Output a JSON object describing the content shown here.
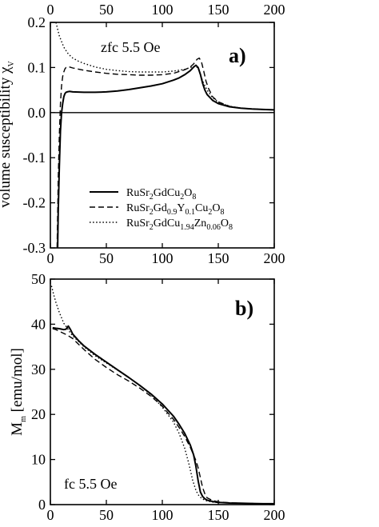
{
  "chart_data": [
    {
      "type": "line",
      "panel": "a)",
      "annotation": "zfc 5.5 Oe",
      "xlabel": "",
      "ylabel": "volume susceptibility χ",
      "ylabel_subscript": "V",
      "xlim": [
        0,
        200
      ],
      "ylim": [
        -0.3,
        0.2
      ],
      "x_ticks": [
        "0",
        "50",
        "100",
        "150",
        "200"
      ],
      "y_ticks": [
        "0.2",
        "0.1",
        "0.0",
        "-0.1",
        "-0.2",
        "-0.3"
      ],
      "zero_line": true,
      "legend_placement": "lower-right",
      "series": [
        {
          "name": "RuSr2GdCu2O8",
          "name_parts": [
            [
              "RuSr",
              false
            ],
            [
              "2",
              true
            ],
            [
              "GdCu",
              false
            ],
            [
              "2",
              true
            ],
            [
              "O",
              false
            ],
            [
              "8",
              true
            ]
          ],
          "dash": "solid",
          "x": [
            6.5,
            7,
            8,
            9,
            10,
            11,
            12,
            13,
            14,
            15,
            17,
            20,
            30,
            40,
            50,
            60,
            70,
            80,
            90,
            100,
            105,
            110,
            115,
            120,
            125,
            128,
            130,
            132,
            134,
            136,
            138,
            140,
            145,
            150,
            160,
            170,
            180,
            190,
            200
          ],
          "values": [
            -0.3,
            -0.22,
            -0.12,
            -0.04,
            0.0,
            0.02,
            0.035,
            0.042,
            0.045,
            0.046,
            0.047,
            0.046,
            0.045,
            0.045,
            0.046,
            0.048,
            0.051,
            0.055,
            0.059,
            0.064,
            0.068,
            0.072,
            0.077,
            0.084,
            0.093,
            0.101,
            0.105,
            0.1,
            0.085,
            0.065,
            0.05,
            0.04,
            0.027,
            0.02,
            0.013,
            0.01,
            0.008,
            0.007,
            0.006
          ]
        },
        {
          "name": "RuSr2Gd0.9Y0.1Cu2O8",
          "name_parts": [
            [
              "RuSr",
              false
            ],
            [
              "2",
              true
            ],
            [
              "Gd",
              false
            ],
            [
              "0.9",
              true
            ],
            [
              "Y",
              false
            ],
            [
              "0.1",
              true
            ],
            [
              "Cu",
              false
            ],
            [
              "2",
              true
            ],
            [
              "O",
              false
            ],
            [
              "8",
              true
            ]
          ],
          "dash": "dashed",
          "x": [
            6,
            7,
            8,
            9,
            10,
            11,
            12,
            13,
            14,
            16,
            20,
            30,
            40,
            50,
            60,
            70,
            80,
            90,
            100,
            110,
            120,
            125,
            128,
            131,
            133,
            135,
            137,
            139,
            141,
            145,
            150,
            160,
            170,
            180,
            200
          ],
          "values": [
            -0.3,
            -0.15,
            -0.05,
            0.02,
            0.06,
            0.08,
            0.09,
            0.097,
            0.1,
            0.102,
            0.099,
            0.094,
            0.09,
            0.087,
            0.085,
            0.084,
            0.083,
            0.083,
            0.084,
            0.087,
            0.095,
            0.101,
            0.108,
            0.118,
            0.121,
            0.112,
            0.092,
            0.07,
            0.055,
            0.035,
            0.024,
            0.014,
            0.01,
            0.008,
            0.006
          ]
        },
        {
          "name": "RuSr2GdCu1.94Zn0.06O8",
          "name_parts": [
            [
              "RuSr",
              false
            ],
            [
              "2",
              true
            ],
            [
              "GdCu",
              false
            ],
            [
              "1.94",
              true
            ],
            [
              "Zn",
              false
            ],
            [
              "0.06",
              true
            ],
            [
              "O",
              false
            ],
            [
              "8",
              true
            ]
          ],
          "dash": "dotted",
          "x": [
            5,
            8,
            12,
            16,
            20,
            25,
            30,
            40,
            50,
            60,
            70,
            80,
            90,
            100,
            110,
            120,
            125,
            128,
            130,
            132,
            134,
            136,
            140,
            145,
            150,
            160,
            170,
            180,
            200
          ],
          "values": [
            0.2,
            0.17,
            0.145,
            0.13,
            0.121,
            0.114,
            0.109,
            0.101,
            0.096,
            0.093,
            0.091,
            0.09,
            0.09,
            0.09,
            0.092,
            0.096,
            0.1,
            0.102,
            0.103,
            0.098,
            0.085,
            0.07,
            0.05,
            0.033,
            0.023,
            0.014,
            0.01,
            0.008,
            0.006
          ]
        }
      ]
    },
    {
      "type": "line",
      "panel": "b)",
      "annotation": "fc 5.5 Oe",
      "xlabel": "",
      "ylabel": "M",
      "ylabel_subscript": "m",
      "ylabel_rest": " [emu/mol]",
      "xlim": [
        0,
        200
      ],
      "ylim": [
        0,
        50
      ],
      "x_ticks": [
        "0",
        "50",
        "100",
        "150",
        "200"
      ],
      "y_ticks": [
        "50",
        "40",
        "30",
        "20",
        "10",
        "0"
      ],
      "series": [
        {
          "dash": "solid",
          "x": [
            2,
            5,
            8,
            10,
            12,
            14,
            16,
            18,
            20,
            25,
            30,
            40,
            50,
            60,
            70,
            80,
            90,
            100,
            110,
            115,
            120,
            125,
            128,
            130,
            132,
            134,
            136,
            138,
            140,
            145,
            150,
            160,
            170,
            180,
            190,
            200
          ],
          "values": [
            39.2,
            39.1,
            39.0,
            38.9,
            38.8,
            38.9,
            39.6,
            38.8,
            37.8,
            36.4,
            35.2,
            33.3,
            31.6,
            29.9,
            28.2,
            26.4,
            24.5,
            22.3,
            19.6,
            17.8,
            15.8,
            13.2,
            11.0,
            8.5,
            5.3,
            2.8,
            1.8,
            1.3,
            1.0,
            0.7,
            0.5,
            0.35,
            0.3,
            0.25,
            0.2,
            0.2
          ]
        },
        {
          "dash": "dashed",
          "x": [
            2,
            5,
            10,
            15,
            20,
            25,
            30,
            40,
            50,
            60,
            70,
            80,
            90,
            100,
            110,
            115,
            120,
            125,
            130,
            132,
            134,
            136,
            138,
            140,
            145,
            150,
            160,
            170,
            180,
            200
          ],
          "values": [
            39.0,
            38.8,
            38.2,
            37.6,
            36.8,
            35.6,
            34.4,
            32.2,
            30.4,
            28.8,
            27.4,
            25.8,
            24.0,
            21.8,
            18.9,
            17.1,
            15.1,
            12.7,
            9.8,
            8.2,
            6.0,
            3.8,
            2.4,
            1.5,
            0.9,
            0.6,
            0.4,
            0.3,
            0.25,
            0.2
          ]
        },
        {
          "dash": "dotted",
          "x": [
            1,
            3,
            5,
            8,
            10,
            12,
            15,
            18,
            20,
            25,
            30,
            40,
            50,
            60,
            70,
            80,
            90,
            100,
            110,
            115,
            120,
            124,
            127,
            130,
            132,
            135,
            138,
            140,
            145,
            150,
            160,
            170,
            180,
            200
          ],
          "values": [
            48.5,
            46.5,
            44.8,
            42.6,
            41.4,
            40.2,
            39.2,
            38.0,
            37.4,
            36.2,
            35.0,
            33.0,
            31.4,
            29.8,
            28.2,
            26.4,
            24.3,
            21.6,
            18.3,
            15.8,
            12.5,
            8.8,
            5.5,
            3.2,
            2.2,
            1.4,
            1.0,
            0.8,
            0.55,
            0.45,
            0.35,
            0.3,
            0.25,
            0.2
          ]
        }
      ]
    }
  ]
}
